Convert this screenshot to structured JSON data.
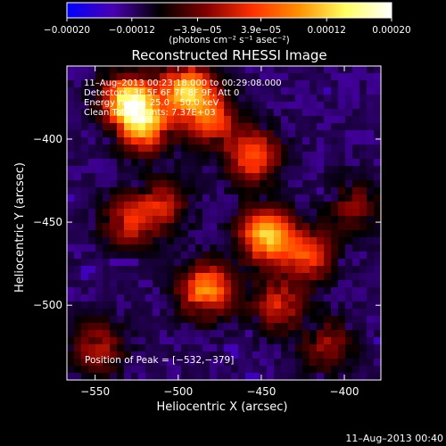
{
  "chart_data": {
    "type": "heatmap",
    "title": "Reconstructed RHESSI Image",
    "xlabel": "Heliocentric X (arcsec)",
    "ylabel": "Heliocentric Y (arcsec)",
    "xlim": [
      -567,
      -378
    ],
    "ylim": [
      -545,
      -356
    ],
    "x_ticks": [
      -550,
      -500,
      -450,
      -400
    ],
    "x_tick_labels": [
      "−550",
      "−500",
      "−450",
      "−400"
    ],
    "y_ticks": [
      -400,
      -450,
      -500
    ],
    "y_tick_labels": [
      "−400",
      "−450",
      "−500"
    ],
    "colorbar": {
      "min": -0.0002,
      "max": 0.0002,
      "ticks": [
        -0.0002,
        -0.00012,
        -3.9e-05,
        3.9e-05,
        0.00012,
        0.0002
      ],
      "tick_labels": [
        "−0.00020",
        "−0.00012",
        "−3.9e−05",
        "3.9e−05",
        "0.00012",
        "0.00020"
      ],
      "units_text": "(photons cm⁻² s⁻¹ asec⁻²)",
      "colormap": [
        "#0000ff",
        "#4a00b0",
        "#000000",
        "#800000",
        "#ff3000",
        "#ff9000",
        "#ffff60",
        "#ffffff"
      ]
    },
    "info_lines": [
      "11–Aug–2013 00:23:18.000 to 00:29:08.000",
      "Detectors: 3F 5F 6F 7F 8F 9F, Att 0",
      "Energy range: 25.0 – 50.0 keV",
      "Clean      Total counts: 7.37E+03"
    ],
    "peak_text": "Position of Peak = [−532,−379]",
    "peak": [
      -532,
      -379
    ],
    "hotspots": [
      {
        "x": -530,
        "y": -377,
        "strength": 1.0
      },
      {
        "x": -520,
        "y": -392,
        "strength": 0.8
      },
      {
        "x": -495,
        "y": -370,
        "strength": 0.9
      },
      {
        "x": -480,
        "y": -388,
        "strength": 0.6
      },
      {
        "x": -455,
        "y": -410,
        "strength": 0.7
      },
      {
        "x": -447,
        "y": -458,
        "strength": 0.95
      },
      {
        "x": -483,
        "y": -491,
        "strength": 0.85
      },
      {
        "x": -422,
        "y": -470,
        "strength": 0.6
      },
      {
        "x": -440,
        "y": -500,
        "strength": 0.5
      },
      {
        "x": -530,
        "y": -450,
        "strength": 0.5
      },
      {
        "x": -548,
        "y": -525,
        "strength": 0.45
      },
      {
        "x": -510,
        "y": -440,
        "strength": 0.45
      },
      {
        "x": -410,
        "y": -525,
        "strength": 0.4
      },
      {
        "x": -395,
        "y": -440,
        "strength": 0.35
      }
    ],
    "grid": false
  },
  "footer": {
    "timestamp": "11–Aug–2013 00:40"
  }
}
